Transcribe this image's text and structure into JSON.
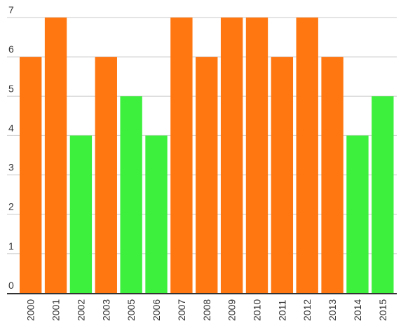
{
  "chart_data": {
    "type": "bar",
    "title": "",
    "xlabel": "",
    "ylabel": "",
    "categories": [
      "2000",
      "2001",
      "2002",
      "2003",
      "2005",
      "2006",
      "2007",
      "2008",
      "2009",
      "2010",
      "2011",
      "2012",
      "2013",
      "2014",
      "2015"
    ],
    "values": [
      6,
      7,
      4,
      6,
      5,
      4,
      7,
      6,
      7,
      7,
      6,
      7,
      6,
      4,
      5
    ],
    "ylim": [
      0,
      7
    ],
    "yticks": [
      "0",
      "1",
      "2",
      "3",
      "4",
      "5",
      "6",
      "7"
    ],
    "grid": true,
    "bar_colors": {
      "orange": "#ff7711",
      "green": "#3ef03e"
    },
    "bar_color_by_category": [
      "orange",
      "orange",
      "green",
      "orange",
      "green",
      "green",
      "orange",
      "orange",
      "orange",
      "orange",
      "orange",
      "orange",
      "orange",
      "green",
      "green"
    ],
    "legend": "none"
  }
}
